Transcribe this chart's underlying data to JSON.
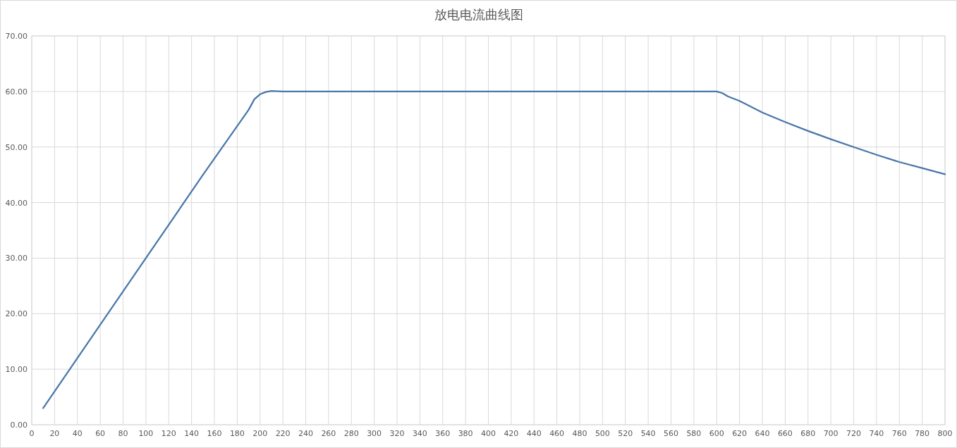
{
  "chart_data": {
    "type": "line",
    "title": "放电电流曲线图",
    "xlim": [
      0,
      800
    ],
    "xticks": [
      0,
      20,
      40,
      60,
      80,
      100,
      120,
      140,
      160,
      180,
      200,
      220,
      240,
      260,
      280,
      300,
      320,
      340,
      360,
      380,
      400,
      420,
      440,
      460,
      480,
      500,
      520,
      540,
      560,
      580,
      600,
      620,
      640,
      660,
      680,
      700,
      720,
      740,
      760,
      780,
      800
    ],
    "ylim": [
      0,
      70
    ],
    "yticks": [
      {
        "value": 0,
        "label": "0.00"
      },
      {
        "value": 10,
        "label": "10.00"
      },
      {
        "value": 20,
        "label": "20.00"
      },
      {
        "value": 30,
        "label": "30.00"
      },
      {
        "value": 40,
        "label": "40.00"
      },
      {
        "value": 50,
        "label": "50.00"
      },
      {
        "value": 60,
        "label": "60.00"
      },
      {
        "value": 70,
        "label": "70.00"
      }
    ],
    "grid": true,
    "marker": "none",
    "line_style": "solid",
    "series": [
      {
        "color": "#4a76aa",
        "x": [
          10,
          50,
          100,
          150,
          190,
          195,
          200,
          205,
          210,
          220,
          600,
          605,
          610,
          620,
          640,
          660,
          680,
          700,
          720,
          740,
          760,
          780,
          800
        ],
        "values": [
          3,
          15,
          30,
          45,
          56.7,
          58.6,
          59.5,
          59.9,
          60.1,
          60,
          60,
          59.7,
          59.1,
          58.3,
          56.2,
          54.5,
          52.9,
          51.4,
          50,
          48.6,
          47.3,
          46.2,
          45.1
        ]
      }
    ]
  }
}
